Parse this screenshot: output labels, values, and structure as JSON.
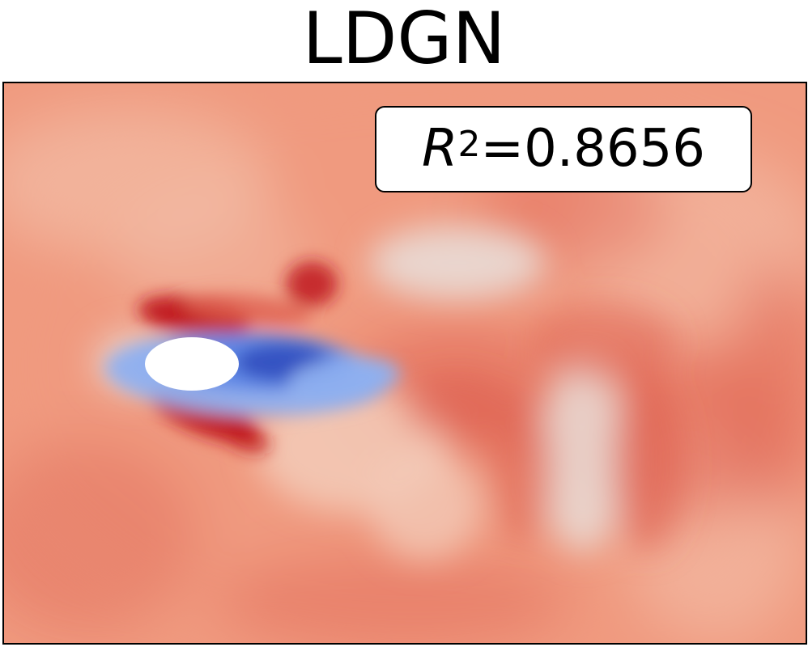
{
  "chart_data": {
    "type": "heatmap",
    "title": "LDGN",
    "annotation": {
      "label": "R",
      "exponent": "2",
      "text": "=0.8656",
      "value": 0.8656
    },
    "colormap": "coolwarm",
    "colorbar": false,
    "axes_ticks": false,
    "obstacle": {
      "shape": "ellipse",
      "fill": "#ffffff"
    },
    "colors": {
      "background": "#f09a7f",
      "strong_red": "#c0181f",
      "mid_red": "#de5f50",
      "light": "#f3c9b6",
      "near_white": "#e9dcd6",
      "light_blue": "#8fb0f0",
      "blue": "#5f86e6",
      "dark_blue": "#3150c0"
    }
  }
}
